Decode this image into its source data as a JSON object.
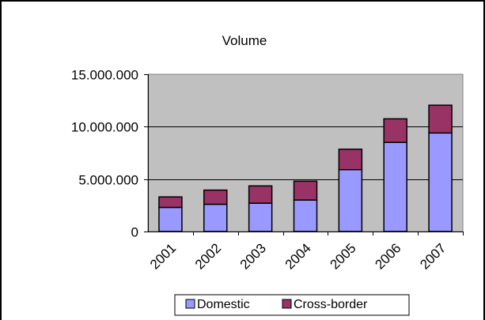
{
  "chart_data": {
    "type": "bar",
    "stacked": true,
    "title": "Volume",
    "xlabel": "",
    "ylabel": "",
    "categories": [
      "2001",
      "2002",
      "2003",
      "2004",
      "2005",
      "2006",
      "2007"
    ],
    "series": [
      {
        "name": "Domestic",
        "color": "#9999ff",
        "values": [
          2300000,
          2600000,
          2700000,
          3000000,
          5900000,
          8500000,
          9400000
        ]
      },
      {
        "name": "Cross-border",
        "color": "#993366",
        "values": [
          1000000,
          1350000,
          1650000,
          1800000,
          1950000,
          2250000,
          2650000
        ]
      }
    ],
    "ylim": [
      0,
      15000000
    ],
    "yticks": [
      0,
      5000000,
      10000000,
      15000000
    ],
    "ytick_labels": [
      "0",
      "5.000.000",
      "10.000.000",
      "15.000.000"
    ],
    "grid": true,
    "plot_background": "#c0c0c0",
    "legend_position": "bottom"
  }
}
